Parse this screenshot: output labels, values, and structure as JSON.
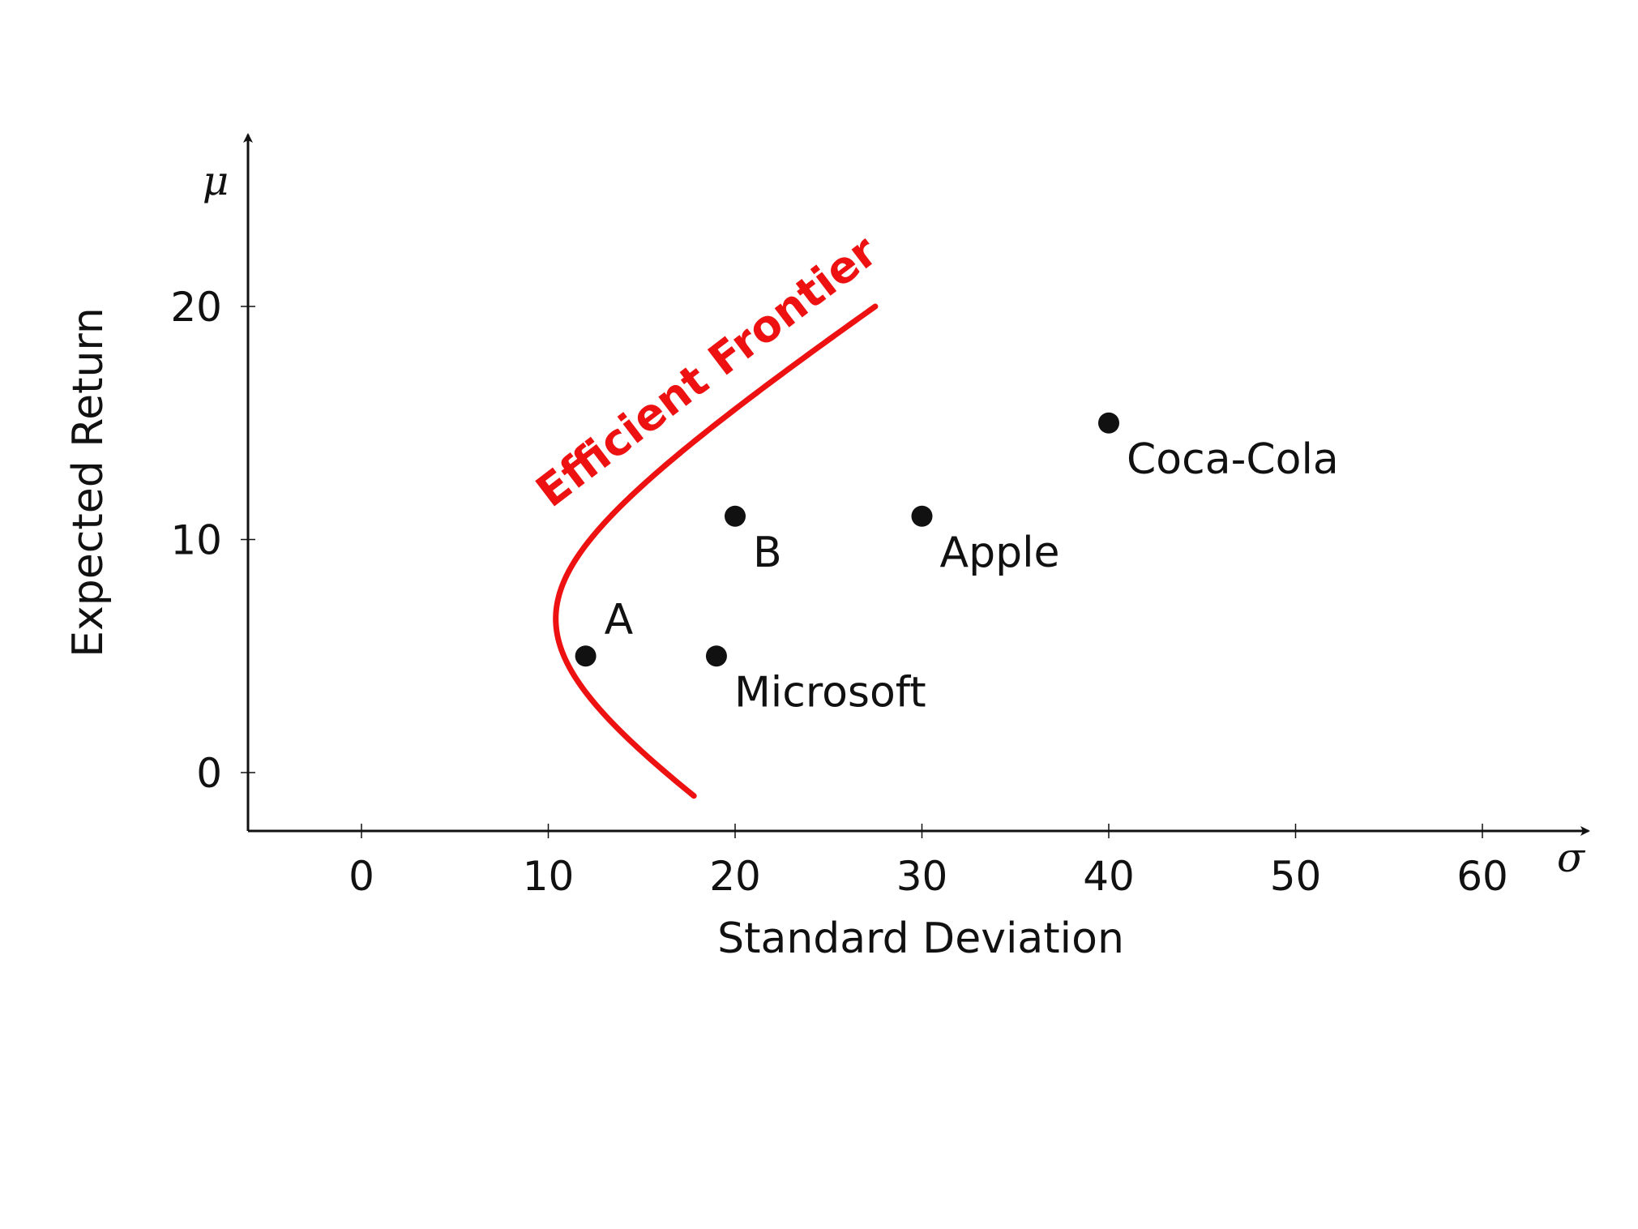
{
  "chart_data": {
    "type": "scatter",
    "title": "",
    "xlabel": "Standard Deviation",
    "ylabel": "Expected Return",
    "x_axis_symbol": "σ",
    "y_axis_symbol": "μ",
    "xlim": [
      -6,
      66
    ],
    "ylim": [
      -2.5,
      27.5
    ],
    "xticks": [
      0,
      10,
      20,
      30,
      40,
      50,
      60
    ],
    "yticks": [
      0,
      10,
      20
    ],
    "grid": false,
    "legend": "none",
    "curve": {
      "label": "Efficient Frontier",
      "color": "#ee1111",
      "shape": "hyperbola",
      "vertex_sigma": 10.4,
      "vertex_mu": 6.6,
      "sigma_per_mu": 1.9,
      "mu_range": [
        -1,
        20
      ]
    },
    "points": [
      {
        "name": "A",
        "x": 12,
        "y": 5
      },
      {
        "name": "B",
        "x": 20,
        "y": 11
      },
      {
        "name": "Microsoft",
        "x": 19,
        "y": 5
      },
      {
        "name": "Apple",
        "x": 30,
        "y": 11
      },
      {
        "name": "Coca-Cola",
        "x": 40,
        "y": 15
      }
    ]
  }
}
